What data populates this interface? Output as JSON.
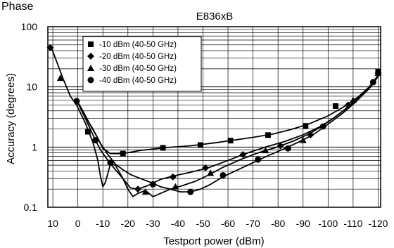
{
  "chart_data": {
    "type": "line",
    "title": "E836xB",
    "corner_label": "Phase",
    "xlabel": "Testport power (dBm)",
    "ylabel": "Accuracy (degrees)",
    "xlim": [
      12,
      -121
    ],
    "ylim": [
      0.1,
      100
    ],
    "yscale": "log",
    "x_ticks": [
      10,
      0,
      -10,
      -20,
      -30,
      -40,
      -50,
      -60,
      -70,
      -80,
      -90,
      -100,
      -110,
      -120
    ],
    "x_tick_labels": [
      "10",
      "0",
      "-10",
      "-20",
      "-30",
      "-40",
      "-50",
      "-60",
      "-70",
      "-80",
      "-90",
      "-100",
      "-110",
      "-120"
    ],
    "y_ticks": [
      0.1,
      1,
      10,
      100
    ],
    "y_tick_labels": [
      "0.1",
      "1",
      "10",
      "100"
    ],
    "grid": true,
    "legend_position": "top-left",
    "series": [
      {
        "name": "-10 dBm (40-50 GHz)",
        "marker": "square",
        "curve": [
          [
            0.5,
            6
          ],
          [
            -2,
            4
          ],
          [
            -5,
            2.3
          ],
          [
            -8,
            1.4
          ],
          [
            -10,
            0.95
          ],
          [
            -13,
            0.78
          ],
          [
            -18,
            0.78
          ],
          [
            -25,
            0.88
          ],
          [
            -35,
            0.98
          ],
          [
            -45,
            1.05
          ],
          [
            -55,
            1.18
          ],
          [
            -62,
            1.3
          ],
          [
            -70,
            1.45
          ],
          [
            -78,
            1.65
          ],
          [
            -85,
            1.95
          ],
          [
            -92,
            2.4
          ],
          [
            -100,
            3.3
          ],
          [
            -106,
            4.6
          ],
          [
            -112,
            6.8
          ],
          [
            -117,
            10.5
          ],
          [
            -121,
            18
          ]
        ],
        "markers": [
          [
            -4,
            1.8
          ],
          [
            -18,
            0.78
          ],
          [
            -34,
            0.97
          ],
          [
            -49,
            1.08
          ],
          [
            -61,
            1.28
          ],
          [
            -76,
            1.58
          ],
          [
            -91,
            2.25
          ],
          [
            -103,
            4.8
          ],
          [
            -120,
            18
          ]
        ]
      },
      {
        "name": "-20 dBm (40-50 GHz)",
        "marker": "diamond",
        "curve": [
          [
            11,
            50
          ],
          [
            9,
            30
          ],
          [
            6,
            14
          ],
          [
            3,
            7
          ],
          [
            0.5,
            5
          ],
          [
            -3,
            2.5
          ],
          [
            -6,
            1.2
          ],
          [
            -8,
            0.6
          ],
          [
            -9,
            0.33
          ],
          [
            -10,
            0.22
          ],
          [
            -11,
            0.26
          ],
          [
            -13,
            0.52
          ],
          [
            -15,
            0.5
          ],
          [
            -18,
            0.3
          ],
          [
            -21,
            0.21
          ],
          [
            -24,
            0.2
          ],
          [
            -28,
            0.23
          ],
          [
            -33,
            0.29
          ],
          [
            -38,
            0.33
          ],
          [
            -45,
            0.38
          ],
          [
            -52,
            0.45
          ],
          [
            -60,
            0.6
          ],
          [
            -67,
            0.78
          ],
          [
            -75,
            1.0
          ],
          [
            -83,
            1.25
          ],
          [
            -90,
            1.6
          ],
          [
            -97,
            2.2
          ],
          [
            -103,
            3.2
          ],
          [
            -109,
            5
          ],
          [
            -115,
            8.5
          ],
          [
            -121,
            17
          ]
        ],
        "markers": [
          [
            11,
            45
          ],
          [
            -24,
            0.2
          ],
          [
            -38,
            0.32
          ],
          [
            -51,
            0.45
          ],
          [
            -66,
            0.75
          ],
          [
            -81,
            1.05
          ],
          [
            -93,
            1.6
          ],
          [
            -108,
            5
          ],
          [
            -120,
            17
          ]
        ]
      },
      {
        "name": "-30 dBm (40-50 GHz)",
        "marker": "triangle",
        "curve": [
          [
            0.5,
            6
          ],
          [
            -3,
            3
          ],
          [
            -6,
            1.6
          ],
          [
            -9,
            0.9
          ],
          [
            -12,
            0.6
          ],
          [
            -15,
            0.42
          ],
          [
            -18,
            0.3
          ],
          [
            -20,
            0.2
          ],
          [
            -22,
            0.15
          ],
          [
            -24,
            0.17
          ],
          [
            -27,
            0.19
          ],
          [
            -30,
            0.15
          ],
          [
            -33,
            0.17
          ],
          [
            -37,
            0.2
          ],
          [
            -42,
            0.23
          ],
          [
            -47,
            0.27
          ],
          [
            -52,
            0.34
          ],
          [
            -58,
            0.46
          ],
          [
            -65,
            0.62
          ],
          [
            -72,
            0.8
          ],
          [
            -79,
            0.98
          ],
          [
            -86,
            1.25
          ],
          [
            -93,
            1.7
          ],
          [
            -100,
            2.6
          ],
          [
            -106,
            4
          ],
          [
            -112,
            6.5
          ],
          [
            -117,
            10
          ],
          [
            -121,
            17
          ]
        ],
        "markers": [
          [
            7,
            14
          ],
          [
            -27,
            0.18
          ],
          [
            -39,
            0.22
          ],
          [
            -53,
            0.37
          ],
          [
            -75,
            0.88
          ],
          [
            -90,
            1.3
          ],
          [
            -110,
            6
          ],
          [
            -120,
            17
          ]
        ]
      },
      {
        "name": "-40 dBm (40-50 GHz)",
        "marker": "circle",
        "curve": [
          [
            0.5,
            6
          ],
          [
            -3,
            3.2
          ],
          [
            -6,
            2
          ],
          [
            -9,
            1.15
          ],
          [
            -12,
            0.75
          ],
          [
            -15,
            0.52
          ],
          [
            -18,
            0.42
          ],
          [
            -21,
            0.35
          ],
          [
            -25,
            0.3
          ],
          [
            -29,
            0.26
          ],
          [
            -33,
            0.22
          ],
          [
            -37,
            0.2
          ],
          [
            -41,
            0.18
          ],
          [
            -45,
            0.18
          ],
          [
            -49,
            0.2
          ],
          [
            -53,
            0.24
          ],
          [
            -58,
            0.32
          ],
          [
            -64,
            0.42
          ],
          [
            -70,
            0.55
          ],
          [
            -76,
            0.72
          ],
          [
            -82,
            0.92
          ],
          [
            -88,
            1.2
          ],
          [
            -94,
            1.6
          ],
          [
            -100,
            2.4
          ],
          [
            -106,
            3.7
          ],
          [
            -111,
            5.6
          ],
          [
            -116,
            9
          ],
          [
            -121,
            17
          ]
        ],
        "markers": [
          [
            0.5,
            5.8
          ],
          [
            -7,
            1.3
          ],
          [
            -13,
            0.55
          ],
          [
            -30,
            0.24
          ],
          [
            -45,
            0.18
          ],
          [
            -58,
            0.34
          ],
          [
            -72,
            0.62
          ],
          [
            -84,
            0.95
          ],
          [
            -98,
            2.2
          ],
          [
            -118,
            12
          ]
        ]
      }
    ]
  }
}
